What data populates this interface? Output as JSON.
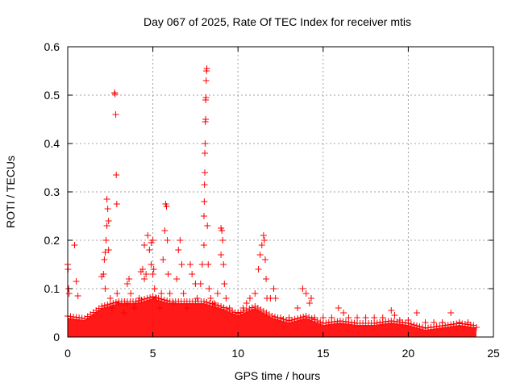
{
  "chart_data": {
    "type": "scatter",
    "title": "Day 067 of 2025, Rate Of TEC Index for receiver mtis",
    "xlabel": "GPS time / hours",
    "ylabel": "ROTI / TECUs",
    "xlim": [
      0,
      25
    ],
    "ylim": [
      0,
      0.6
    ],
    "xticks": [
      0,
      5,
      10,
      15,
      20,
      25
    ],
    "yticks": [
      0,
      0.1,
      0.2,
      0.3,
      0.4,
      0.5,
      0.6
    ],
    "xtick_labels": [
      "0",
      "5",
      "10",
      "15",
      "20",
      "25"
    ],
    "ytick_labels": [
      "0",
      "0.1",
      "0.2",
      "0.3",
      "0.4",
      "0.5",
      "0.6"
    ],
    "grid": true,
    "marker": "+",
    "marker_color": "#ff0000",
    "series": [
      {
        "name": "ROTI",
        "points": [
          [
            0.0,
            0.15
          ],
          [
            0.02,
            0.14
          ],
          [
            0.05,
            0.1
          ],
          [
            0.08,
            0.09
          ],
          [
            0.4,
            0.19
          ],
          [
            0.5,
            0.115
          ],
          [
            0.6,
            0.085
          ],
          [
            2.0,
            0.125
          ],
          [
            2.1,
            0.13
          ],
          [
            2.15,
            0.16
          ],
          [
            2.2,
            0.175
          ],
          [
            2.2,
            0.1
          ],
          [
            2.25,
            0.2
          ],
          [
            2.3,
            0.23
          ],
          [
            2.3,
            0.285
          ],
          [
            2.35,
            0.265
          ],
          [
            2.4,
            0.24
          ],
          [
            2.4,
            0.18
          ],
          [
            2.5,
            0.08
          ],
          [
            2.6,
            0.06
          ],
          [
            2.75,
            0.505
          ],
          [
            2.78,
            0.502
          ],
          [
            2.82,
            0.46
          ],
          [
            2.85,
            0.335
          ],
          [
            2.88,
            0.275
          ],
          [
            2.9,
            0.09
          ],
          [
            3.0,
            0.07
          ],
          [
            3.3,
            0.05
          ],
          [
            3.5,
            0.07
          ],
          [
            3.5,
            0.11
          ],
          [
            3.6,
            0.12
          ],
          [
            3.7,
            0.09
          ],
          [
            3.9,
            0.06
          ],
          [
            4.0,
            0.07
          ],
          [
            4.2,
            0.08
          ],
          [
            4.3,
            0.135
          ],
          [
            4.4,
            0.14
          ],
          [
            4.5,
            0.12
          ],
          [
            4.5,
            0.19
          ],
          [
            4.6,
            0.13
          ],
          [
            4.7,
            0.21
          ],
          [
            4.8,
            0.18
          ],
          [
            4.9,
            0.15
          ],
          [
            4.9,
            0.195
          ],
          [
            5.0,
            0.13
          ],
          [
            5.0,
            0.2
          ],
          [
            5.05,
            0.14
          ],
          [
            5.1,
            0.1
          ],
          [
            5.2,
            0.08
          ],
          [
            5.4,
            0.06
          ],
          [
            5.5,
            0.09
          ],
          [
            5.6,
            0.16
          ],
          [
            5.7,
            0.22
          ],
          [
            5.75,
            0.275
          ],
          [
            5.8,
            0.27
          ],
          [
            5.85,
            0.2
          ],
          [
            5.9,
            0.13
          ],
          [
            6.0,
            0.09
          ],
          [
            6.2,
            0.07
          ],
          [
            6.4,
            0.12
          ],
          [
            6.5,
            0.18
          ],
          [
            6.6,
            0.2
          ],
          [
            6.7,
            0.15
          ],
          [
            6.8,
            0.09
          ],
          [
            7.0,
            0.06
          ],
          [
            7.2,
            0.15
          ],
          [
            7.3,
            0.13
          ],
          [
            7.5,
            0.11
          ],
          [
            7.6,
            0.08
          ],
          [
            7.8,
            0.11
          ],
          [
            7.9,
            0.15
          ],
          [
            8.0,
            0.19
          ],
          [
            8.0,
            0.25
          ],
          [
            8.02,
            0.28
          ],
          [
            8.03,
            0.315
          ],
          [
            8.05,
            0.34
          ],
          [
            8.05,
            0.38
          ],
          [
            8.07,
            0.4
          ],
          [
            8.08,
            0.445
          ],
          [
            8.1,
            0.45
          ],
          [
            8.1,
            0.49
          ],
          [
            8.12,
            0.495
          ],
          [
            8.13,
            0.53
          ],
          [
            8.15,
            0.55
          ],
          [
            8.17,
            0.555
          ],
          [
            8.2,
            0.23
          ],
          [
            8.25,
            0.15
          ],
          [
            8.3,
            0.1
          ],
          [
            8.4,
            0.08
          ],
          [
            8.6,
            0.07
          ],
          [
            8.8,
            0.09
          ],
          [
            9.0,
            0.17
          ],
          [
            9.0,
            0.225
          ],
          [
            9.05,
            0.22
          ],
          [
            9.1,
            0.2
          ],
          [
            9.15,
            0.15
          ],
          [
            9.2,
            0.11
          ],
          [
            9.3,
            0.08
          ],
          [
            9.5,
            0.06
          ],
          [
            10.0,
            0.05
          ],
          [
            10.3,
            0.06
          ],
          [
            10.5,
            0.07
          ],
          [
            10.7,
            0.08
          ],
          [
            11.0,
            0.09
          ],
          [
            11.2,
            0.14
          ],
          [
            11.3,
            0.17
          ],
          [
            11.4,
            0.19
          ],
          [
            11.5,
            0.21
          ],
          [
            11.55,
            0.2
          ],
          [
            11.6,
            0.16
          ],
          [
            11.65,
            0.12
          ],
          [
            11.7,
            0.08
          ],
          [
            11.9,
            0.08
          ],
          [
            12.1,
            0.1
          ],
          [
            12.2,
            0.08
          ],
          [
            12.5,
            0.04
          ],
          [
            13.0,
            0.04
          ],
          [
            13.5,
            0.06
          ],
          [
            13.8,
            0.1
          ],
          [
            14.0,
            0.09
          ],
          [
            14.2,
            0.07
          ],
          [
            14.3,
            0.08
          ],
          [
            14.5,
            0.04
          ],
          [
            15.0,
            0.04
          ],
          [
            15.5,
            0.04
          ],
          [
            15.9,
            0.06
          ],
          [
            16.2,
            0.05
          ],
          [
            16.5,
            0.04
          ],
          [
            17.0,
            0.04
          ],
          [
            17.5,
            0.04
          ],
          [
            18.0,
            0.04
          ],
          [
            18.5,
            0.04
          ],
          [
            19.0,
            0.055
          ],
          [
            19.2,
            0.045
          ],
          [
            19.5,
            0.035
          ],
          [
            20.0,
            0.035
          ],
          [
            20.5,
            0.05
          ],
          [
            21.0,
            0.03
          ],
          [
            21.5,
            0.03
          ],
          [
            22.0,
            0.03
          ],
          [
            22.5,
            0.05
          ],
          [
            23.0,
            0.03
          ],
          [
            23.5,
            0.03
          ],
          [
            24.0,
            0.02
          ]
        ]
      }
    ],
    "background_band": {
      "x_start": 0,
      "x_end": 24,
      "segments": [
        [
          0,
          0.04
        ],
        [
          1,
          0.035
        ],
        [
          2,
          0.06
        ],
        [
          3,
          0.07
        ],
        [
          4,
          0.07
        ],
        [
          5,
          0.08
        ],
        [
          6,
          0.07
        ],
        [
          7,
          0.07
        ],
        [
          8,
          0.07
        ],
        [
          9,
          0.06
        ],
        [
          10,
          0.045
        ],
        [
          11,
          0.06
        ],
        [
          12,
          0.04
        ],
        [
          13,
          0.03
        ],
        [
          14,
          0.04
        ],
        [
          15,
          0.025
        ],
        [
          16,
          0.03
        ],
        [
          17,
          0.025
        ],
        [
          18,
          0.025
        ],
        [
          19,
          0.03
        ],
        [
          20,
          0.025
        ],
        [
          21,
          0.015
        ],
        [
          22,
          0.02
        ],
        [
          23,
          0.025
        ],
        [
          24,
          0.02
        ]
      ]
    }
  }
}
